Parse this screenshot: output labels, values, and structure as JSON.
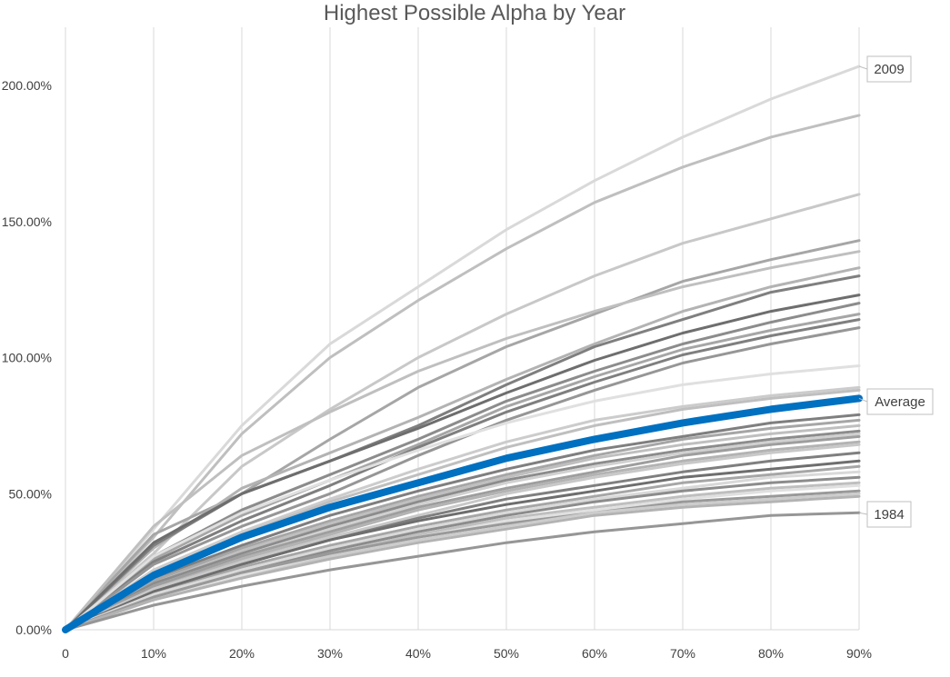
{
  "chart_data": {
    "type": "line",
    "title": "Highest Possible Alpha by Year",
    "xlabel": "",
    "ylabel": "",
    "x": [
      "0",
      "10%",
      "20%",
      "30%",
      "40%",
      "50%",
      "60%",
      "70%",
      "80%",
      "90%"
    ],
    "y_ticks": [
      "0.00%",
      "50.00%",
      "100.00%",
      "150.00%",
      "200.00%"
    ],
    "ylim": [
      0,
      220
    ],
    "grid": "vertical",
    "legend": "none",
    "highlight_color": "#0070C0",
    "series": [
      {
        "name": "2009",
        "values": [
          0,
          37,
          75,
          105,
          126,
          147,
          165,
          181,
          195,
          207
        ]
      },
      {
        "name": "",
        "values": [
          0,
          34,
          72,
          100,
          121,
          140,
          157,
          170,
          181,
          189
        ]
      },
      {
        "name": "",
        "values": [
          0,
          28,
          60,
          81,
          100,
          116,
          130,
          142,
          151,
          160
        ]
      },
      {
        "name": "",
        "values": [
          0,
          35,
          50,
          70,
          89,
          104,
          116,
          128,
          136,
          143
        ]
      },
      {
        "name": "",
        "values": [
          0,
          38,
          64,
          80,
          95,
          107,
          117,
          126,
          133,
          139
        ]
      },
      {
        "name": "",
        "values": [
          0,
          30,
          52,
          65,
          78,
          92,
          105,
          117,
          126,
          133
        ]
      },
      {
        "name": "",
        "values": [
          0,
          31,
          50,
          62,
          75,
          90,
          104,
          114,
          124,
          130
        ]
      },
      {
        "name": "",
        "values": [
          0,
          32,
          50,
          62,
          74,
          87,
          99,
          109,
          117,
          123
        ]
      },
      {
        "name": "",
        "values": [
          0,
          27,
          44,
          57,
          70,
          84,
          95,
          105,
          113,
          120
        ]
      },
      {
        "name": "",
        "values": [
          0,
          26,
          42,
          55,
          68,
          82,
          93,
          103,
          110,
          116
        ]
      },
      {
        "name": "",
        "values": [
          0,
          25,
          40,
          53,
          67,
          80,
          91,
          101,
          108,
          114
        ]
      },
      {
        "name": "",
        "values": [
          0,
          24,
          38,
          50,
          64,
          77,
          88,
          98,
          105,
          111
        ]
      },
      {
        "name": "",
        "values": [
          0,
          27,
          43,
          55,
          66,
          76,
          84,
          90,
          94,
          97
        ]
      },
      {
        "name": "",
        "values": [
          0,
          22,
          36,
          48,
          59,
          69,
          77,
          82,
          86,
          89
        ]
      },
      {
        "name": "",
        "values": [
          0,
          21,
          35,
          47,
          57,
          67,
          75,
          81,
          85,
          88
        ]
      },
      {
        "name": "Average",
        "values": [
          0,
          20,
          34,
          45,
          54,
          63,
          70,
          76,
          81,
          85
        ]
      },
      {
        "name": "",
        "values": [
          0,
          19,
          31,
          42,
          51,
          59,
          66,
          71,
          76,
          79
        ]
      },
      {
        "name": "",
        "values": [
          0,
          18,
          30,
          40,
          49,
          57,
          64,
          70,
          74,
          77
        ]
      },
      {
        "name": "",
        "values": [
          0,
          17,
          29,
          39,
          48,
          56,
          63,
          68,
          72,
          75
        ]
      },
      {
        "name": "",
        "values": [
          0,
          17,
          28,
          38,
          47,
          55,
          61,
          66,
          70,
          73
        ]
      },
      {
        "name": "",
        "values": [
          0,
          16,
          27,
          37,
          46,
          54,
          60,
          65,
          69,
          72
        ]
      },
      {
        "name": "",
        "values": [
          0,
          16,
          27,
          36,
          45,
          52,
          58,
          64,
          68,
          71
        ]
      },
      {
        "name": "",
        "values": [
          0,
          15,
          26,
          35,
          44,
          51,
          57,
          62,
          66,
          69
        ]
      },
      {
        "name": "",
        "values": [
          0,
          15,
          25,
          34,
          42,
          50,
          56,
          61,
          65,
          68
        ]
      },
      {
        "name": "",
        "values": [
          0,
          14,
          24,
          33,
          41,
          48,
          53,
          58,
          62,
          65
        ]
      },
      {
        "name": "",
        "values": [
          0,
          14,
          24,
          33,
          40,
          46,
          51,
          56,
          59,
          62
        ]
      },
      {
        "name": "",
        "values": [
          0,
          13,
          23,
          31,
          38,
          44,
          49,
          54,
          57,
          60
        ]
      },
      {
        "name": "",
        "values": [
          0,
          13,
          22,
          30,
          37,
          43,
          48,
          52,
          56,
          58
        ]
      },
      {
        "name": "",
        "values": [
          0,
          12,
          21,
          29,
          36,
          42,
          47,
          51,
          54,
          56
        ]
      },
      {
        "name": "",
        "values": [
          0,
          12,
          21,
          28,
          35,
          41,
          45,
          49,
          52,
          54
        ]
      },
      {
        "name": "",
        "values": [
          0,
          11,
          20,
          27,
          34,
          40,
          44,
          48,
          51,
          53
        ]
      },
      {
        "name": "",
        "values": [
          0,
          12,
          21,
          28,
          34,
          39,
          43,
          47,
          49,
          51
        ]
      },
      {
        "name": "",
        "values": [
          0,
          11,
          19,
          27,
          33,
          38,
          43,
          46,
          48,
          50
        ]
      },
      {
        "name": "",
        "values": [
          0,
          11,
          19,
          26,
          32,
          37,
          42,
          45,
          47,
          49
        ]
      },
      {
        "name": "1984",
        "values": [
          0,
          9,
          16,
          22,
          27,
          32,
          36,
          39,
          42,
          43
        ]
      }
    ],
    "series_colors": [
      "#D9D9D9",
      "#BFBFBF",
      "#C8C8C8",
      "#A6A6A6",
      "#BFBFBF",
      "#B3B3B3",
      "#7F7F7F",
      "#6E6E6E",
      "#8C8C8C",
      "#A6A6A6",
      "#7F7F7F",
      "#969696",
      "#E0E0E0",
      "#CCCCCC",
      "#BFBFBF",
      "#0070C0",
      "#7F7F7F",
      "#A6A6A6",
      "#BFBFBF",
      "#8C8C8C",
      "#D0D0D0",
      "#9E9E9E",
      "#B3B3B3",
      "#C8C8C8",
      "#7F7F7F",
      "#6E6E6E",
      "#A6A6A6",
      "#D9D9D9",
      "#8C8C8C",
      "#BFBFBF",
      "#E0E0E0",
      "#999999",
      "#CCCCCC",
      "#B3B3B3",
      "#969696"
    ],
    "callouts": [
      "2009",
      "Average",
      "1984"
    ]
  }
}
